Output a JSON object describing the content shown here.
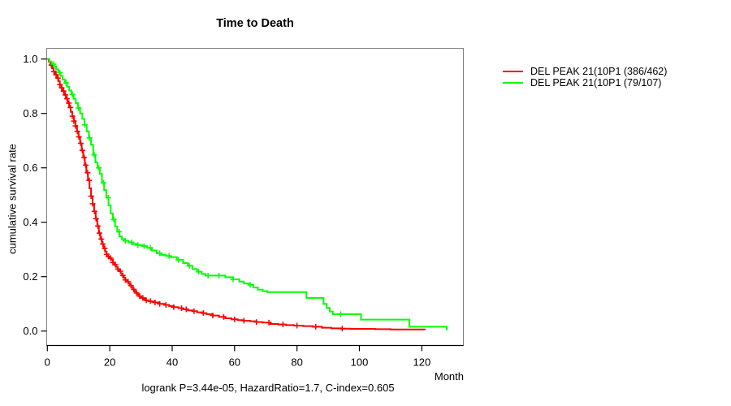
{
  "title": "Time to Death",
  "x_axis_label": "Month",
  "y_axis_label": "cumulative survival rate",
  "footer": "logrank P=3.44e-05, HazardRatio=1.7, C-index=0.605",
  "legend": {
    "items": [
      {
        "label": "DEL PEAK 21(10P1 (386/462)",
        "color": "#ff0000"
      },
      {
        "label": "DEL PEAK 21(10P1 (79/107)",
        "color": "#00ff00"
      }
    ]
  },
  "chart_data": {
    "type": "line",
    "subtype": "kaplan-meier-step",
    "title": "Time to Death",
    "xlabel": "Month",
    "ylabel": "cumulative survival rate",
    "annotation": "logrank P=3.44e-05, HazardRatio=1.7, C-index=0.605",
    "xlim": [
      0,
      133
    ],
    "ylim": [
      0,
      1.0
    ],
    "x_ticks": [
      0,
      20,
      40,
      60,
      80,
      100,
      120
    ],
    "x_tick_labels": [
      "0",
      "20",
      "40",
      "60",
      "80",
      "100",
      "120"
    ],
    "y_ticks": [
      0.0,
      0.2,
      0.4,
      0.6,
      0.8,
      1.0
    ],
    "y_tick_labels": [
      "0.0",
      "0.2",
      "0.4",
      "0.6",
      "0.8",
      "1.0"
    ],
    "grid": false,
    "legend_position": "right-outside",
    "box_color": "#808080",
    "axis_color": "#000000",
    "series": [
      {
        "name": "DEL PEAK 21(10P1 (386/462)",
        "color": "#ff0000",
        "steps": [
          [
            0,
            1.0
          ],
          [
            0.5,
            0.99
          ],
          [
            1.0,
            0.978
          ],
          [
            1.5,
            0.966
          ],
          [
            2.0,
            0.954
          ],
          [
            2.5,
            0.942
          ],
          [
            3.0,
            0.93
          ],
          [
            3.5,
            0.918
          ],
          [
            4.0,
            0.906
          ],
          [
            4.5,
            0.894
          ],
          [
            5.0,
            0.882
          ],
          [
            5.5,
            0.868
          ],
          [
            6.0,
            0.854
          ],
          [
            6.5,
            0.838
          ],
          [
            7.0,
            0.822
          ],
          [
            7.5,
            0.806
          ],
          [
            8.0,
            0.79
          ],
          [
            8.5,
            0.772
          ],
          [
            9.0,
            0.754
          ],
          [
            9.5,
            0.734
          ],
          [
            10.0,
            0.714
          ],
          [
            10.5,
            0.69
          ],
          [
            11.0,
            0.664
          ],
          [
            11.5,
            0.638
          ],
          [
            12.0,
            0.61
          ],
          [
            12.5,
            0.582
          ],
          [
            13.0,
            0.554
          ],
          [
            13.5,
            0.525
          ],
          [
            14.0,
            0.496
          ],
          [
            14.5,
            0.468
          ],
          [
            15.0,
            0.44
          ],
          [
            15.5,
            0.413
          ],
          [
            16.0,
            0.386
          ],
          [
            16.5,
            0.36
          ],
          [
            17.0,
            0.338
          ],
          [
            17.5,
            0.32
          ],
          [
            18.0,
            0.304
          ],
          [
            18.5,
            0.292
          ],
          [
            19.0,
            0.282
          ],
          [
            19.5,
            0.274
          ],
          [
            20.0,
            0.268
          ],
          [
            20.5,
            0.262
          ],
          [
            21.0,
            0.252
          ],
          [
            21.5,
            0.244
          ],
          [
            22.0,
            0.236
          ],
          [
            22.5,
            0.228
          ],
          [
            23.0,
            0.22
          ],
          [
            23.5,
            0.212
          ],
          [
            24.0,
            0.204
          ],
          [
            24.5,
            0.196
          ],
          [
            25.0,
            0.188
          ],
          [
            25.5,
            0.181
          ],
          [
            26.0,
            0.174
          ],
          [
            26.5,
            0.167
          ],
          [
            27.0,
            0.16
          ],
          [
            27.5,
            0.153
          ],
          [
            28.0,
            0.146
          ],
          [
            28.5,
            0.14
          ],
          [
            29.0,
            0.134
          ],
          [
            29.5,
            0.128
          ],
          [
            30.0,
            0.122
          ],
          [
            30.7,
            0.117
          ],
          [
            31.5,
            0.113
          ],
          [
            32.3,
            0.11
          ],
          [
            33.2,
            0.108
          ],
          [
            34.5,
            0.105
          ],
          [
            36.0,
            0.1
          ],
          [
            37.5,
            0.096
          ],
          [
            39.0,
            0.092
          ],
          [
            40.5,
            0.088
          ],
          [
            42.0,
            0.084
          ],
          [
            43.5,
            0.08
          ],
          [
            45.0,
            0.076
          ],
          [
            46.5,
            0.073
          ],
          [
            48.0,
            0.069
          ],
          [
            49.5,
            0.066
          ],
          [
            51.0,
            0.062
          ],
          [
            53.0,
            0.057
          ],
          [
            55.0,
            0.052
          ],
          [
            57.0,
            0.047
          ],
          [
            59.0,
            0.043
          ],
          [
            61.0,
            0.04
          ],
          [
            63.0,
            0.038
          ],
          [
            65.0,
            0.036
          ],
          [
            67.0,
            0.033
          ],
          [
            69.0,
            0.031
          ],
          [
            71.5,
            0.026
          ],
          [
            74.0,
            0.024
          ],
          [
            76.5,
            0.022
          ],
          [
            79.0,
            0.02
          ],
          [
            82.0,
            0.018
          ],
          [
            85.0,
            0.016
          ],
          [
            88.0,
            0.012
          ],
          [
            91.0,
            0.01
          ],
          [
            94.0,
            0.009
          ],
          [
            97.0,
            0.008
          ],
          [
            100.0,
            0.008
          ],
          [
            105.0,
            0.007
          ],
          [
            110.0,
            0.006
          ],
          [
            115.0,
            0.006
          ],
          [
            121.0,
            0.005
          ]
        ],
        "censor_months": [
          1.3,
          2.1,
          2.8,
          3.4,
          4.0,
          4.6,
          5.2,
          5.8,
          6.3,
          6.9,
          7.4,
          8.0,
          8.5,
          9.0,
          9.6,
          10.1,
          10.7,
          11.2,
          11.8,
          12.3,
          12.9,
          13.4,
          14.0,
          14.5,
          15.1,
          15.6,
          16.2,
          16.7,
          17.3,
          17.8,
          18.4,
          19.0,
          19.6,
          20.3,
          21.0,
          21.8,
          22.6,
          23.4,
          24.2,
          25.0,
          25.9,
          26.8,
          27.7,
          28.6,
          29.6,
          30.6,
          31.7,
          33.0,
          34.5,
          36.0,
          38.0,
          40.5,
          43.0,
          44.5,
          47.0,
          50.0,
          53.0,
          56.5,
          60.0,
          63.0,
          67.0,
          71.0,
          75.5,
          80.0,
          86.0,
          94.5
        ]
      },
      {
        "name": "DEL PEAK 21(10P1 (79/107)",
        "color": "#00ff00",
        "steps": [
          [
            0,
            1.0
          ],
          [
            0.7,
            0.991
          ],
          [
            1.4,
            0.981
          ],
          [
            2.1,
            0.972
          ],
          [
            2.8,
            0.962
          ],
          [
            3.5,
            0.95
          ],
          [
            4.2,
            0.938
          ],
          [
            4.9,
            0.925
          ],
          [
            5.6,
            0.912
          ],
          [
            6.3,
            0.898
          ],
          [
            7.0,
            0.884
          ],
          [
            7.7,
            0.87
          ],
          [
            8.4,
            0.854
          ],
          [
            9.1,
            0.838
          ],
          [
            9.8,
            0.82
          ],
          [
            10.5,
            0.8
          ],
          [
            11.2,
            0.78
          ],
          [
            11.9,
            0.758
          ],
          [
            12.6,
            0.734
          ],
          [
            13.3,
            0.71
          ],
          [
            14.0,
            0.685
          ],
          [
            14.7,
            0.648
          ],
          [
            15.4,
            0.62
          ],
          [
            16.1,
            0.6
          ],
          [
            16.8,
            0.578
          ],
          [
            17.5,
            0.545
          ],
          [
            18.2,
            0.518
          ],
          [
            18.9,
            0.49
          ],
          [
            19.6,
            0.462
          ],
          [
            20.3,
            0.432
          ],
          [
            21.0,
            0.41
          ],
          [
            21.7,
            0.385
          ],
          [
            22.4,
            0.365
          ],
          [
            23.1,
            0.348
          ],
          [
            23.9,
            0.338
          ],
          [
            24.8,
            0.332
          ],
          [
            26.0,
            0.326
          ],
          [
            27.5,
            0.32
          ],
          [
            29.0,
            0.316
          ],
          [
            30.5,
            0.312
          ],
          [
            32.0,
            0.306
          ],
          [
            33.5,
            0.296
          ],
          [
            35.0,
            0.286
          ],
          [
            36.5,
            0.28
          ],
          [
            38.0,
            0.276
          ],
          [
            39.5,
            0.272
          ],
          [
            41.5,
            0.262
          ],
          [
            43.5,
            0.25
          ],
          [
            45.0,
            0.24
          ],
          [
            46.5,
            0.228
          ],
          [
            48.0,
            0.218
          ],
          [
            49.5,
            0.21
          ],
          [
            50.7,
            0.204
          ],
          [
            57.0,
            0.198
          ],
          [
            59.5,
            0.19
          ],
          [
            61.5,
            0.182
          ],
          [
            63.0,
            0.175
          ],
          [
            64.5,
            0.17
          ],
          [
            66.0,
            0.16
          ],
          [
            67.5,
            0.152
          ],
          [
            69.0,
            0.147
          ],
          [
            70.5,
            0.143
          ],
          [
            83.0,
            0.122
          ],
          [
            88.5,
            0.1
          ],
          [
            89.5,
            0.085
          ],
          [
            90.5,
            0.072
          ],
          [
            91.5,
            0.062
          ],
          [
            100.5,
            0.042
          ],
          [
            116.0,
            0.016
          ],
          [
            128.0,
            0.003
          ]
        ],
        "censor_months": [
          2.0,
          4.0,
          6.0,
          8.0,
          10.0,
          12.0,
          13.5,
          15.0,
          16.5,
          18.0,
          19.5,
          21.3,
          23.0,
          25.0,
          27.0,
          29.0,
          31.0,
          33.0,
          36.0,
          39.0,
          42.0,
          45.5,
          48.5,
          51.5,
          55.0,
          59.5,
          65.0,
          94.0
        ]
      }
    ]
  }
}
